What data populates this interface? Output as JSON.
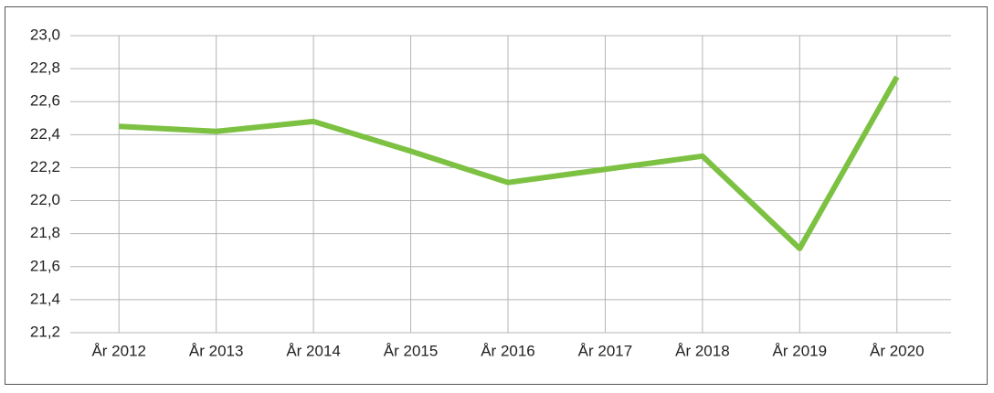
{
  "chart_data": {
    "type": "line",
    "categories": [
      "År 2012",
      "År 2013",
      "År 2014",
      "År 2015",
      "År 2016",
      "År 2017",
      "År 2018",
      "År 2019",
      "År 2020"
    ],
    "values": [
      22.45,
      22.42,
      22.48,
      22.3,
      22.11,
      22.19,
      22.27,
      21.71,
      22.75
    ],
    "color": "#7cc142",
    "ylim": [
      21.2,
      23.0
    ],
    "yticks": [
      {
        "value": 21.2,
        "label": "21,2"
      },
      {
        "value": 21.4,
        "label": "21,4"
      },
      {
        "value": 21.6,
        "label": "21,6"
      },
      {
        "value": 21.8,
        "label": "21,8"
      },
      {
        "value": 22.0,
        "label": "22,0"
      },
      {
        "value": 22.2,
        "label": "22,2"
      },
      {
        "value": 22.4,
        "label": "22,4"
      },
      {
        "value": 22.6,
        "label": "22,6"
      },
      {
        "value": 22.8,
        "label": "22,8"
      },
      {
        "value": 23.0,
        "label": "23,0"
      }
    ],
    "grid": true
  }
}
